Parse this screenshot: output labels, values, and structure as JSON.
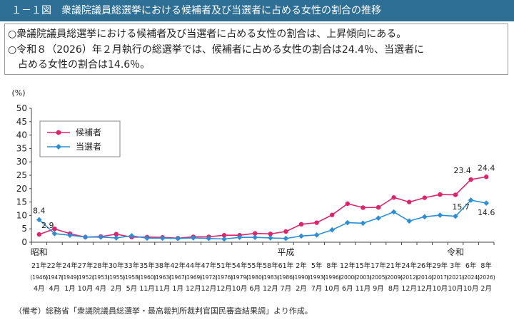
{
  "header": {
    "title": "１－１図　衆議院議員総選挙における候補者及び当選者に占める女性の割合の推移"
  },
  "summary": {
    "line1": "○衆議院議員総選挙における候補者及び当選者に占める女性の割合は、上昇傾向にある。",
    "line2": "○令和８（2026）年２月執行の総選挙では、候補者に占める女性の割合は24.4％、当選者に",
    "line3": "　占める女性の割合は14.6％。"
  },
  "footnote": "（備考）総務省「衆議院議員総選挙・最高裁判所裁判官国民審査結果調」より作成。",
  "chart_data": {
    "type": "line",
    "ylabel": "(%)",
    "ylim": [
      0,
      50
    ],
    "yticks": [
      0,
      5,
      10,
      15,
      20,
      25,
      30,
      35,
      40,
      45,
      50
    ],
    "grid": false,
    "legend_position": "top-left",
    "era_labels": [
      {
        "text": "昭和",
        "at": 0
      },
      {
        "text": "平成",
        "at": 16
      },
      {
        "text": "令和",
        "at": 27
      }
    ],
    "categories": [
      {
        "y": "21年",
        "w": "(1946)",
        "m": "4月"
      },
      {
        "y": "22年",
        "w": "(1947)",
        "m": "4月"
      },
      {
        "y": "24年",
        "w": "(1949)",
        "m": "1月"
      },
      {
        "y": "27年",
        "w": "(1952)",
        "m": "10月"
      },
      {
        "y": "28年",
        "w": "(1953)",
        "m": "4月"
      },
      {
        "y": "30年",
        "w": "(1955)",
        "m": "2月"
      },
      {
        "y": "33年",
        "w": "(1958)",
        "m": "5月"
      },
      {
        "y": "35年",
        "w": "(1960)",
        "m": "11月"
      },
      {
        "y": "38年",
        "w": "(1963)",
        "m": "11月"
      },
      {
        "y": "42年",
        "w": "(1967)",
        "m": "1月"
      },
      {
        "y": "44年",
        "w": "(1969)",
        "m": "12月"
      },
      {
        "y": "47年",
        "w": "(1972)",
        "m": "12月"
      },
      {
        "y": "51年",
        "w": "(1976)",
        "m": "12月"
      },
      {
        "y": "54年",
        "w": "(1979)",
        "m": "10月"
      },
      {
        "y": "55年",
        "w": "(1980)",
        "m": "6月"
      },
      {
        "y": "58年",
        "w": "(1983)",
        "m": "12月"
      },
      {
        "y": "61年",
        "w": "(1986)",
        "m": "7月"
      },
      {
        "y": "2年",
        "w": "(1990)",
        "m": "2月"
      },
      {
        "y": "5年",
        "w": "(1993)",
        "m": "7月"
      },
      {
        "y": "8年",
        "w": "(1996)",
        "m": "10月"
      },
      {
        "y": "12年",
        "w": "(2000)",
        "m": "6月"
      },
      {
        "y": "15年",
        "w": "(2003)",
        "m": "11月"
      },
      {
        "y": "17年",
        "w": "(2005)",
        "m": "9月"
      },
      {
        "y": "21年",
        "w": "(2009)",
        "m": "8月"
      },
      {
        "y": "24年",
        "w": "(2012)",
        "m": "12月"
      },
      {
        "y": "26年",
        "w": "(2014)",
        "m": "12月"
      },
      {
        "y": "29年",
        "w": "(2017)",
        "m": "10月"
      },
      {
        "y": "3年",
        "w": "(2021)",
        "m": "10月"
      },
      {
        "y": "6年",
        "w": "(2024)",
        "m": "10月"
      },
      {
        "y": "8年",
        "w": "(2026)",
        "m": "2月"
      }
    ],
    "series": [
      {
        "name": "候補者",
        "color": "#e0246b",
        "marker": "circle",
        "values": [
          2.9,
          5.0,
          3.2,
          1.9,
          2.1,
          3.0,
          1.9,
          1.9,
          1.8,
          1.5,
          2.0,
          2.0,
          2.6,
          2.6,
          3.3,
          3.1,
          4.0,
          6.7,
          7.3,
          10.2,
          14.4,
          12.9,
          13.0,
          16.7,
          15.0,
          16.6,
          17.8,
          17.7,
          23.4,
          24.4
        ]
      },
      {
        "name": "当選者",
        "color": "#2c8fd6",
        "marker": "diamond",
        "values": [
          8.4,
          3.2,
          2.6,
          1.9,
          1.9,
          1.6,
          2.4,
          1.5,
          1.5,
          1.4,
          1.6,
          1.4,
          1.2,
          1.8,
          1.8,
          1.6,
          1.4,
          2.3,
          2.7,
          4.6,
          7.3,
          7.1,
          9.0,
          11.3,
          7.9,
          9.5,
          10.1,
          9.7,
          15.7,
          14.6
        ]
      }
    ],
    "data_labels": [
      {
        "series": 1,
        "index": 0,
        "text": "8.4",
        "pos": "above"
      },
      {
        "series": 0,
        "index": 0,
        "text": "2.9",
        "pos": "above-right"
      },
      {
        "series": 0,
        "index": 28,
        "text": "23.4",
        "pos": "above-left"
      },
      {
        "series": 0,
        "index": 29,
        "text": "24.4",
        "pos": "above"
      },
      {
        "series": 1,
        "index": 28,
        "text": "15.7",
        "pos": "below-left"
      },
      {
        "series": 1,
        "index": 29,
        "text": "14.6",
        "pos": "below"
      }
    ]
  }
}
